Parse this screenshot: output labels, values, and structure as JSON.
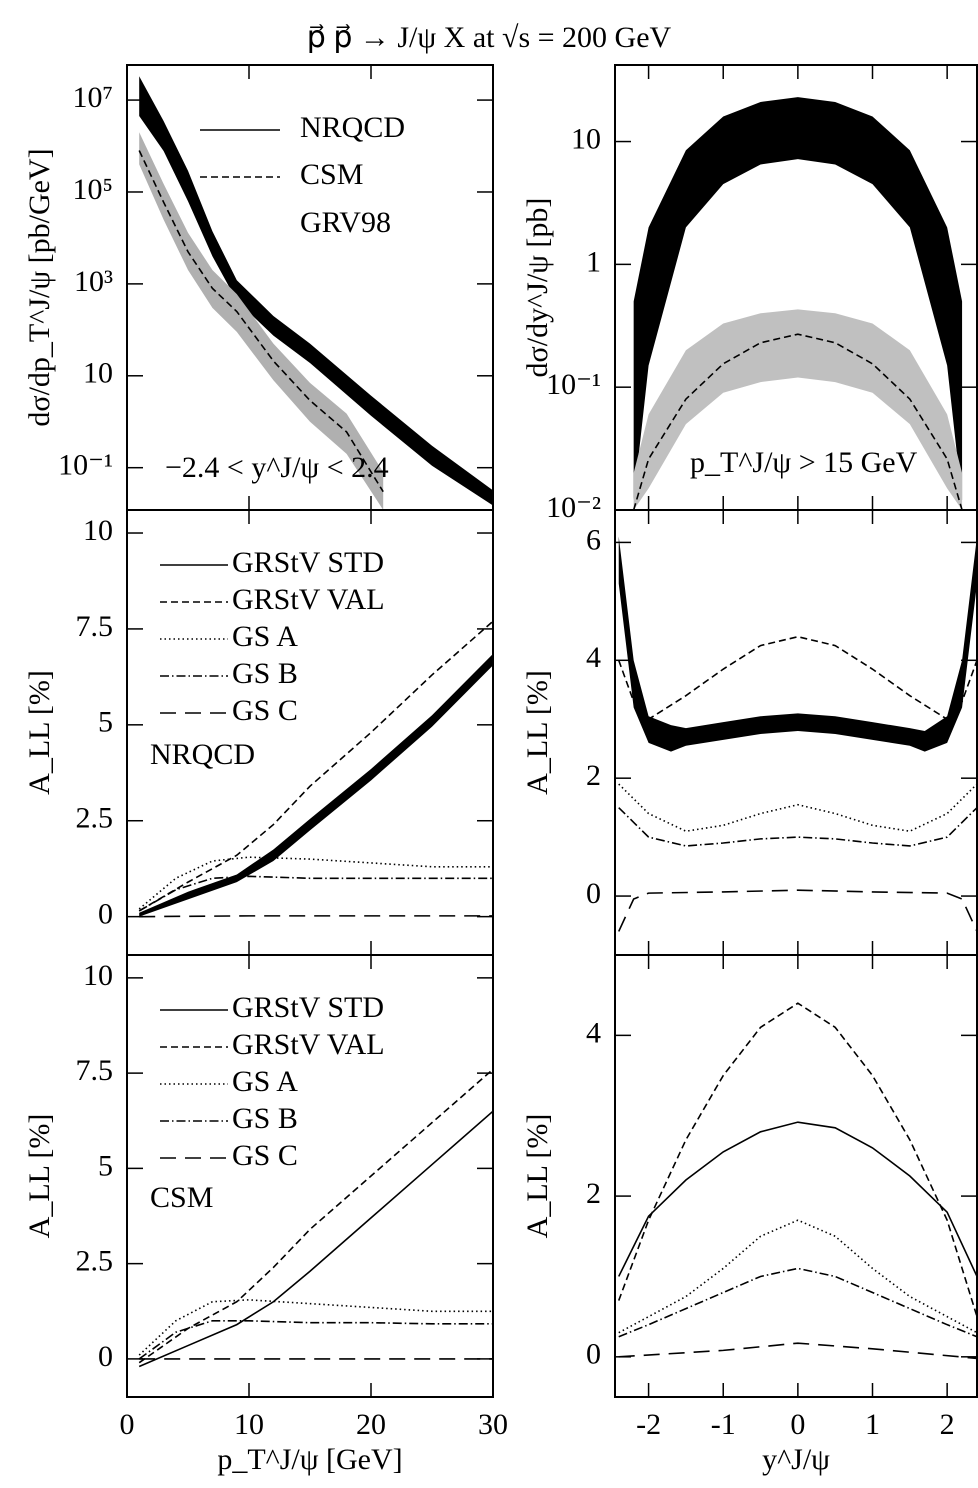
{
  "title": "p⃗ p⃗ → J/ψ X at √s = 200 GeV",
  "chart_data": [
    {
      "type": "line",
      "log": true,
      "ylabel": "dσ/dp_T^J/ψ [pb/GeV]",
      "xlim": [
        0,
        30
      ],
      "xticks": [
        0,
        10,
        20,
        30
      ],
      "show_xtick_labels": false,
      "ylim": [
        0.012,
        58000000
      ],
      "yticks": [
        {
          "value": 10000000,
          "label": "10⁷"
        },
        {
          "value": 100000,
          "label": "10⁵"
        },
        {
          "value": 1000,
          "label": "10³"
        },
        10,
        {
          "value": 0.1,
          "label": "10⁻¹"
        }
      ],
      "legend": true,
      "annotations": [
        "GRV98",
        "−2.4 < y^J/ψ < 2.4"
      ],
      "series": [
        {
          "name": "NRQCD",
          "color": "#000000",
          "dash": "solid",
          "x": [
            1,
            3,
            5,
            7,
            9,
            12,
            15,
            20,
            25,
            30
          ],
          "low": [
            4500000,
            780000,
            63000,
            4000,
            430,
            75,
            19,
            1.35,
            0.11,
            0.015
          ],
          "high": [
            33000000,
            3500000,
            290000,
            14000,
            1200,
            200,
            50,
            3.7,
            0.3,
            0.032
          ]
        },
        {
          "name": "CSM",
          "color": "#000000",
          "band_color": "#b0b0b0",
          "dash": "dashed",
          "x": [
            1,
            3,
            5,
            7,
            9,
            12,
            15,
            18,
            21
          ],
          "values": [
            800000,
            60000,
            5000,
            800,
            250,
            21,
            2.9,
            0.6,
            0.03
          ],
          "low": [
            400000,
            25000,
            2000,
            300,
            90,
            8,
            1,
            0.2,
            0.012
          ],
          "high": [
            2000000,
            150000,
            13000,
            2000,
            600,
            50,
            7,
            1.5,
            0.08
          ]
        }
      ]
    },
    {
      "type": "line",
      "log": true,
      "ylabel": "dσ/dy^J/ψ [pb]",
      "xlim": [
        -2.45,
        2.4
      ],
      "xticks": [
        -2,
        -1,
        0,
        1,
        2
      ],
      "show_xtick_labels": false,
      "ylim": [
        0.01,
        42
      ],
      "yticks": [
        10,
        1,
        {
          "value": 0.1,
          "label": "10⁻¹"
        },
        {
          "value": 0.01,
          "label": "10⁻²"
        }
      ],
      "legend": false,
      "annotations": [
        "p_T^J/ψ > 15 GeV"
      ],
      "series": [
        {
          "color": "#000000",
          "x": [
            -2.2,
            -2,
            -1.5,
            -1,
            -0.5,
            0,
            0.5,
            1,
            1.5,
            2,
            2.2
          ],
          "low": [
            0.012,
            0.15,
            2,
            4.5,
            6.5,
            7.2,
            6.5,
            4.5,
            2,
            0.15,
            0.012
          ],
          "high": [
            0.5,
            2,
            8.5,
            16,
            21,
            23,
            21,
            16,
            8.5,
            2,
            0.5
          ]
        },
        {
          "color": "#000000",
          "band_color": "#c0c0c0",
          "dash": "dashed",
          "x": [
            -2.2,
            -2,
            -1.5,
            -1,
            -0.5,
            0,
            0.5,
            1,
            1.5,
            2,
            2.2
          ],
          "values": [
            0.01,
            0.026,
            0.08,
            0.155,
            0.23,
            0.27,
            0.23,
            0.155,
            0.08,
            0.026,
            0.01
          ],
          "low": [
            0.01,
            0.015,
            0.05,
            0.09,
            0.11,
            0.12,
            0.11,
            0.09,
            0.05,
            0.015,
            0.01
          ],
          "high": [
            0.02,
            0.06,
            0.2,
            0.33,
            0.4,
            0.43,
            0.4,
            0.33,
            0.2,
            0.06,
            0.02
          ]
        }
      ]
    },
    {
      "type": "line",
      "log": false,
      "ylabel": "A_LL   [%]",
      "xlim": [
        0,
        30
      ],
      "xticks": [
        0,
        10,
        20,
        30
      ],
      "show_xtick_labels": false,
      "ylim": [
        -1,
        10.6
      ],
      "yticks": [
        0,
        2.5,
        5,
        7.5,
        10
      ],
      "legend": true,
      "annotations": [
        "NRQCD"
      ],
      "series": [
        {
          "name": "GRStV STD",
          "color": "#000000",
          "dash": "solid",
          "x": [
            1,
            5,
            9,
            12,
            15,
            20,
            25,
            30
          ],
          "low": [
            0.0,
            0.45,
            0.9,
            1.45,
            2.25,
            3.55,
            4.95,
            6.55
          ],
          "high": [
            0.1,
            0.65,
            1.1,
            1.75,
            2.55,
            3.85,
            5.25,
            6.85
          ]
        },
        {
          "name": "GRStV VAL",
          "color": "#000000",
          "dash": "dashed",
          "x": [
            1,
            5,
            9,
            12,
            15,
            20,
            25,
            30
          ],
          "values": [
            0.15,
            0.9,
            1.6,
            2.4,
            3.4,
            4.8,
            6.3,
            7.7
          ]
        },
        {
          "name": "GS A",
          "color": "#000000",
          "dash": "dotted",
          "x": [
            1,
            4,
            7,
            10,
            15,
            20,
            25,
            30
          ],
          "values": [
            0.2,
            1.0,
            1.45,
            1.55,
            1.5,
            1.4,
            1.3,
            1.3
          ]
        },
        {
          "name": "GS B",
          "color": "#000000",
          "dash": "dashdot",
          "x": [
            1,
            4,
            7,
            10,
            15,
            20,
            25,
            30
          ],
          "values": [
            0.15,
            0.7,
            1.0,
            1.05,
            1.0,
            1.0,
            1.0,
            1.0
          ]
        },
        {
          "name": "GS C",
          "color": "#000000",
          "dash": "longdash",
          "x": [
            1,
            10,
            20,
            30
          ],
          "values": [
            0.0,
            0.02,
            0.02,
            0.02
          ]
        }
      ]
    },
    {
      "type": "line",
      "log": false,
      "ylabel": "A_LL   [%]",
      "xlim": [
        -2.45,
        2.4
      ],
      "xticks": [
        -2,
        -1,
        0,
        1,
        2
      ],
      "show_xtick_labels": false,
      "ylim": [
        -1,
        6.55
      ],
      "yticks": [
        0,
        2,
        4,
        6
      ],
      "legend": false,
      "annotations": [],
      "series": [
        {
          "color": "#000000",
          "x": [
            -2.4,
            -2.2,
            -2,
            -1.7,
            -1.5,
            -1,
            -0.5,
            0,
            0.5,
            1,
            1.5,
            1.7,
            2,
            2.2,
            2.4
          ],
          "low": [
            5.3,
            3.2,
            2.6,
            2.45,
            2.55,
            2.65,
            2.75,
            2.8,
            2.75,
            2.65,
            2.55,
            2.45,
            2.6,
            3.2,
            5.3
          ],
          "high": [
            6.1,
            4.0,
            3.05,
            2.9,
            2.85,
            2.95,
            3.05,
            3.1,
            3.05,
            2.95,
            2.85,
            2.8,
            3.05,
            4.0,
            6.1
          ]
        },
        {
          "color": "#000000",
          "dash": "dashed",
          "x": [
            -2.4,
            -2.2,
            -2,
            -1.5,
            -1,
            -0.5,
            0,
            0.5,
            1,
            1.5,
            2,
            2.2,
            2.4
          ],
          "values": [
            4.0,
            3.3,
            3.0,
            3.4,
            3.85,
            4.25,
            4.4,
            4.25,
            3.85,
            3.4,
            3.0,
            3.3,
            4.0
          ]
        },
        {
          "color": "#000000",
          "dash": "dotted",
          "x": [
            -2.4,
            -2,
            -1.5,
            -1,
            -0.5,
            0,
            0.5,
            1,
            1.5,
            2,
            2.4
          ],
          "values": [
            1.9,
            1.4,
            1.1,
            1.2,
            1.4,
            1.55,
            1.4,
            1.2,
            1.1,
            1.4,
            1.9
          ]
        },
        {
          "color": "#000000",
          "dash": "dashdot",
          "x": [
            -2.4,
            -2,
            -1.5,
            -1,
            -0.5,
            0,
            0.5,
            1,
            1.5,
            2,
            2.4
          ],
          "values": [
            1.5,
            1.0,
            0.85,
            0.9,
            0.97,
            1.0,
            0.97,
            0.9,
            0.85,
            1.0,
            1.5
          ]
        },
        {
          "color": "#000000",
          "dash": "longdash",
          "x": [
            -2.4,
            -2.2,
            -2,
            -1,
            0,
            1,
            2,
            2.2,
            2.4
          ],
          "values": [
            -0.6,
            -0.05,
            0.05,
            0.07,
            0.1,
            0.07,
            0.05,
            -0.05,
            -0.6
          ]
        }
      ]
    },
    {
      "type": "line",
      "log": false,
      "ylabel": "A_LL   [%]",
      "xlabel": "p_T^J/ψ [GeV]",
      "xlim": [
        0,
        30
      ],
      "xticks": [
        0,
        10,
        20,
        30
      ],
      "show_xtick_labels": true,
      "ylim": [
        -1,
        10.6
      ],
      "yticks": [
        0,
        2.5,
        5,
        7.5,
        10
      ],
      "legend": true,
      "annotations": [
        "CSM"
      ],
      "series": [
        {
          "name": "GRStV STD",
          "color": "#000000",
          "dash": "solid",
          "x": [
            1,
            5,
            9,
            12,
            15,
            20,
            25,
            30
          ],
          "values": [
            -0.2,
            0.35,
            0.9,
            1.5,
            2.3,
            3.7,
            5.1,
            6.5
          ]
        },
        {
          "name": "GRStV VAL",
          "color": "#000000",
          "dash": "dashed",
          "x": [
            1,
            5,
            9,
            12,
            15,
            20,
            25,
            30
          ],
          "values": [
            -0.1,
            0.8,
            1.5,
            2.4,
            3.4,
            4.8,
            6.2,
            7.6
          ]
        },
        {
          "name": "GS A",
          "color": "#000000",
          "dash": "dotted",
          "x": [
            1,
            4,
            7,
            10,
            15,
            20,
            25,
            30
          ],
          "values": [
            0.1,
            1.0,
            1.5,
            1.55,
            1.45,
            1.35,
            1.25,
            1.25
          ]
        },
        {
          "name": "GS B",
          "color": "#000000",
          "dash": "dashdot",
          "x": [
            1,
            4,
            7,
            10,
            15,
            20,
            25,
            30
          ],
          "values": [
            0.0,
            0.7,
            1.0,
            1.0,
            0.95,
            0.95,
            0.92,
            0.92
          ]
        },
        {
          "name": "GS C",
          "color": "#000000",
          "dash": "longdash",
          "x": [
            1,
            10,
            20,
            30
          ],
          "values": [
            0.0,
            0.0,
            0.0,
            0.0
          ]
        }
      ]
    },
    {
      "type": "line",
      "log": false,
      "ylabel": "A_LL   [%]",
      "xlabel": "y^J/ψ",
      "xlim": [
        -2.45,
        2.4
      ],
      "xticks": [
        -2,
        -1,
        0,
        1,
        2
      ],
      "show_xtick_labels": true,
      "ylim": [
        -0.5,
        5
      ],
      "yticks": [
        0,
        2,
        4
      ],
      "legend": false,
      "annotations": [],
      "series": [
        {
          "color": "#000000",
          "dash": "solid",
          "x": [
            -2.4,
            -2,
            -1.5,
            -1,
            -0.5,
            0,
            0.5,
            1,
            1.5,
            2,
            2.4
          ],
          "values": [
            1.0,
            1.75,
            2.2,
            2.55,
            2.8,
            2.92,
            2.85,
            2.6,
            2.25,
            1.8,
            1.0
          ]
        },
        {
          "color": "#000000",
          "dash": "dashed",
          "x": [
            -2.4,
            -2,
            -1.5,
            -1,
            -0.5,
            0,
            0.5,
            1,
            1.5,
            2,
            2.4
          ],
          "values": [
            0.7,
            1.7,
            2.7,
            3.5,
            4.1,
            4.4,
            4.1,
            3.5,
            2.7,
            1.7,
            0.5
          ]
        },
        {
          "color": "#000000",
          "dash": "dotted",
          "x": [
            -2.4,
            -2,
            -1.5,
            -1,
            -0.5,
            0,
            0.5,
            1,
            1.5,
            2,
            2.4
          ],
          "values": [
            0.3,
            0.5,
            0.75,
            1.1,
            1.5,
            1.7,
            1.5,
            1.1,
            0.75,
            0.5,
            0.3
          ]
        },
        {
          "color": "#000000",
          "dash": "dashdot",
          "x": [
            -2.4,
            -2,
            -1.5,
            -1,
            -0.5,
            0,
            0.5,
            1,
            1.5,
            2,
            2.4
          ],
          "values": [
            0.25,
            0.4,
            0.6,
            0.8,
            1.0,
            1.1,
            1.0,
            0.8,
            0.6,
            0.4,
            0.25
          ]
        },
        {
          "color": "#000000",
          "dash": "longdash",
          "x": [
            -2.4,
            -1,
            0,
            1,
            2.4
          ],
          "values": [
            0.0,
            0.08,
            0.17,
            0.1,
            -0.02
          ]
        }
      ]
    }
  ]
}
